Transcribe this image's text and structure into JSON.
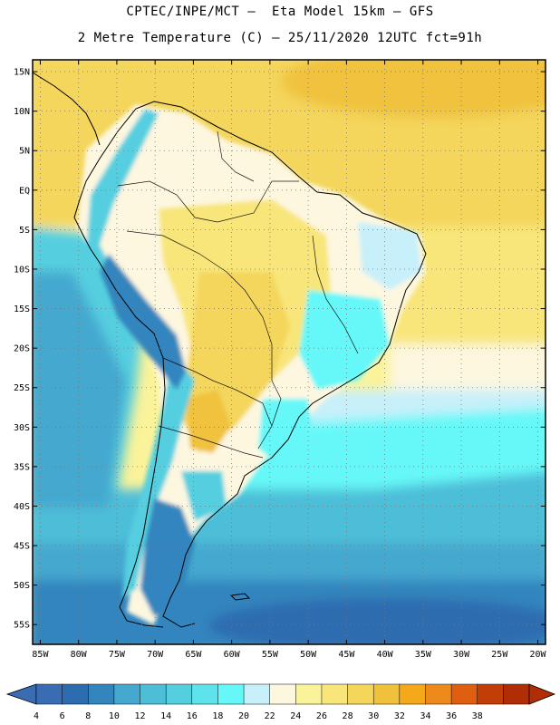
{
  "header": {
    "line1": "CPTEC/INPE/MCT –  Eta Model 15km – GFS",
    "line2": "2 Metre Temperature (C) – 25/11/2020 12UTC fct=91h"
  },
  "axes": {
    "lat_labels": [
      "15N",
      "10N",
      "5N",
      "EQ",
      "5S",
      "10S",
      "15S",
      "20S",
      "25S",
      "30S",
      "35S",
      "40S",
      "45S",
      "50S",
      "55S"
    ],
    "lon_labels": [
      "85W",
      "80W",
      "75W",
      "70W",
      "65W",
      "60W",
      "55W",
      "50W",
      "45W",
      "40W",
      "35W",
      "30W",
      "25W",
      "20W"
    ],
    "lat_values": [
      15,
      10,
      5,
      0,
      -5,
      -10,
      -15,
      -20,
      -25,
      -30,
      -35,
      -40,
      -45,
      -50,
      -55
    ],
    "lon_values": [
      -85,
      -80,
      -75,
      -70,
      -65,
      -60,
      -55,
      -50,
      -45,
      -40,
      -35,
      -30,
      -25,
      -20
    ],
    "lat_range": [
      -57.5,
      16.5
    ],
    "lon_range": [
      -86,
      -19
    ],
    "grid": "dotted"
  },
  "legend": {
    "labels": [
      "4",
      "6",
      "8",
      "10",
      "12",
      "14",
      "16",
      "18",
      "20",
      "22",
      "24",
      "26",
      "28",
      "30",
      "32",
      "34",
      "36",
      "38"
    ],
    "colors": [
      "#3a6cb4",
      "#2e6cb0",
      "#3385be",
      "#44a8cf",
      "#4dbed8",
      "#55cfe0",
      "#5ee2ec",
      "#66f8f8",
      "#c8f0fa",
      "#fdf7e0",
      "#fbf39a",
      "#f8e67a",
      "#f4d65b",
      "#f0c23c",
      "#f4a81a",
      "#ee8a1c",
      "#e05e10",
      "#c23e08",
      "#b02d06"
    ]
  }
}
